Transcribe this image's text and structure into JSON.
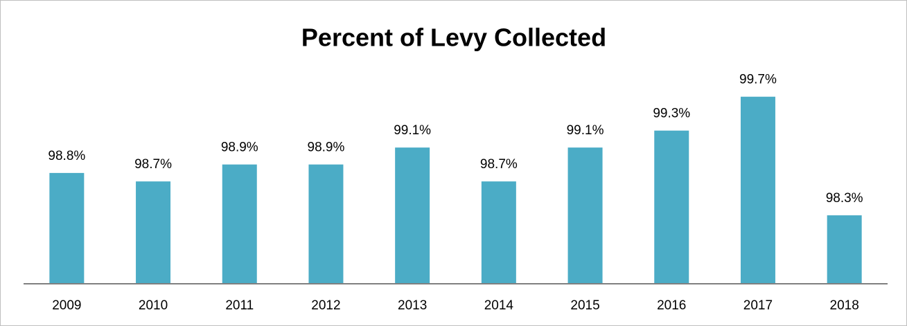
{
  "chart_data": {
    "type": "bar",
    "title": "Percent of Levy Collected",
    "categories": [
      "2009",
      "2010",
      "2011",
      "2012",
      "2013",
      "2014",
      "2015",
      "2016",
      "2017",
      "2018"
    ],
    "values": [
      98.8,
      98.7,
      98.9,
      98.9,
      99.1,
      98.7,
      99.1,
      99.3,
      99.7,
      98.3
    ],
    "value_labels": [
      "98.8%",
      "98.7%",
      "98.9%",
      "98.9%",
      "99.1%",
      "98.7%",
      "99.1%",
      "99.3%",
      "99.7%",
      "98.3%"
    ],
    "color": "#4bacc6",
    "ylim": [
      97.5,
      100
    ],
    "grid": false
  }
}
